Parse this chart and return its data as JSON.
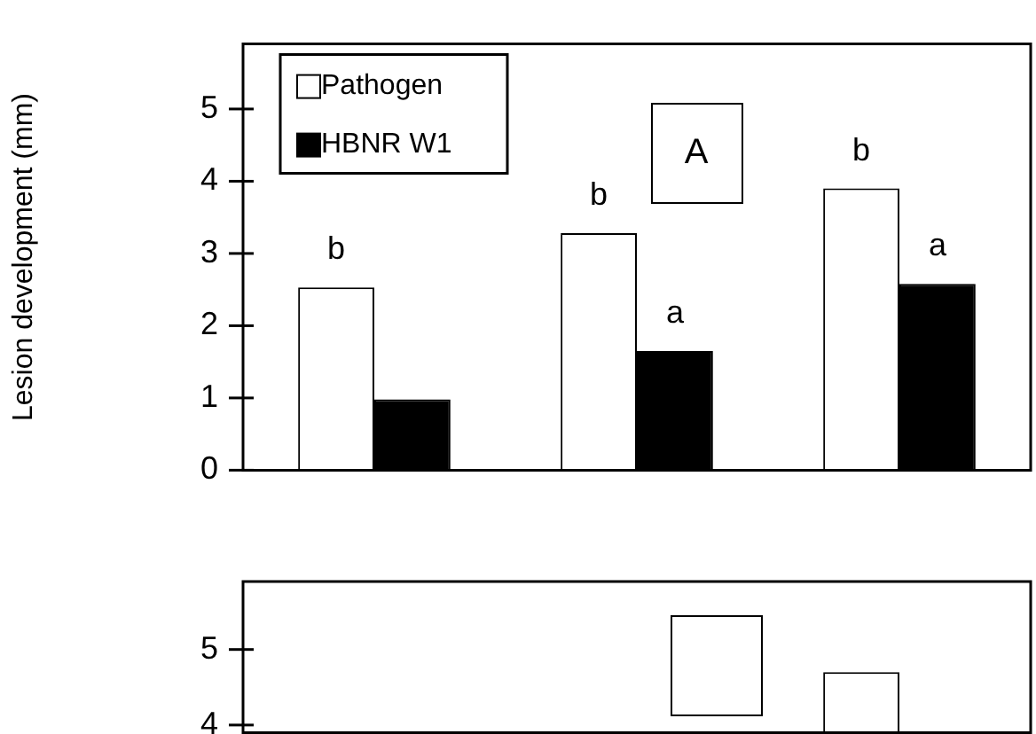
{
  "chart_data": [
    {
      "type": "bar",
      "ylabel": "Lesion development (mm)",
      "annotations": [
        "A"
      ],
      "categories": [
        null,
        null,
        null
      ],
      "series": [
        {
          "name": "Pathogen",
          "color": "#ffffff",
          "values": [
            2.53,
            3.28,
            3.9
          ],
          "value_labels": [
            "b",
            "b",
            "b"
          ]
        },
        {
          "name": "HBNR W1",
          "color": "#000000",
          "values": [
            0.98,
            1.65,
            2.58
          ],
          "value_labels": [
            null,
            "a",
            "a"
          ]
        }
      ],
      "ylim": [
        0,
        5.9
      ],
      "yticks": [
        0,
        1,
        2,
        3,
        4,
        5
      ],
      "grid": false,
      "legend": "top left"
    },
    {
      "type": "bar",
      "categories": [
        null,
        null,
        null
      ],
      "series": [
        {
          "color": "#ffffff",
          "values": [
            null,
            null,
            4.7
          ]
        },
        {
          "color": "#000000",
          "values": [
            null,
            null,
            null
          ]
        }
      ],
      "ylim": [
        3.9,
        5.9
      ],
      "yticks": [
        4,
        5
      ],
      "grid": false,
      "legend": false
    }
  ]
}
